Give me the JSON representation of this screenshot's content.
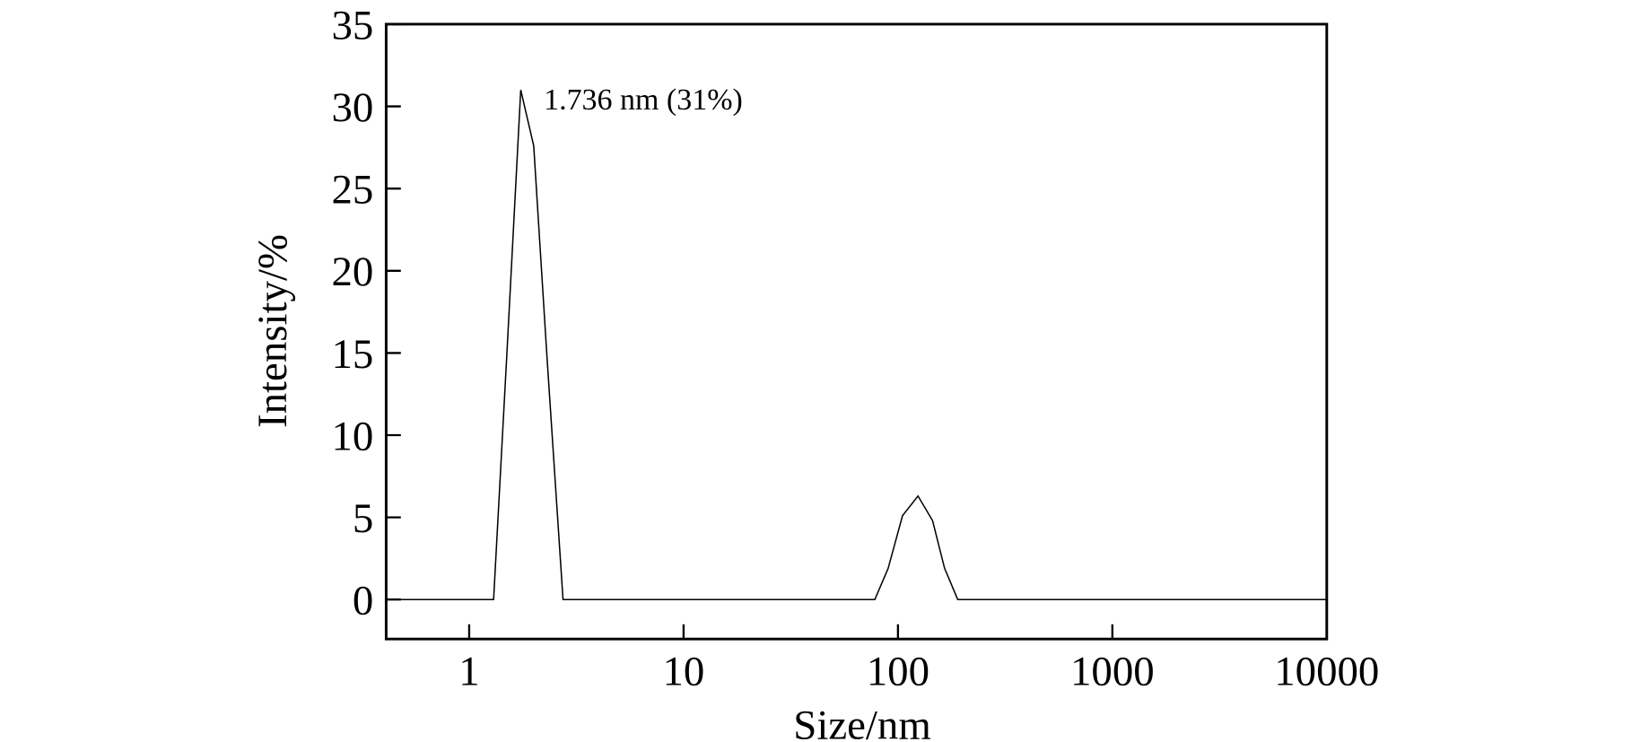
{
  "chart_data": {
    "type": "line",
    "xlabel": "Size/nm",
    "ylabel": "Intensity/%",
    "annotation": "1.736 nm (31%)",
    "x": [
      0.41,
      1.3,
      1.5,
      1.74,
      2.0,
      2.3,
      2.74,
      78,
      90,
      105,
      124,
      145,
      165,
      190,
      10000
    ],
    "values": [
      0,
      0,
      15,
      31,
      27.6,
      15,
      0,
      0,
      1.9,
      5.1,
      6.3,
      4.8,
      1.9,
      0,
      0
    ],
    "color": "#000000",
    "xscale": "log",
    "xlim": [
      0.41,
      10000
    ],
    "xticks": [
      1,
      10,
      100,
      1000,
      10000
    ],
    "ylim": [
      -2.4,
      35
    ],
    "yticks": [
      0,
      5,
      10,
      15,
      20,
      25,
      30,
      35
    ],
    "grid": false
  }
}
